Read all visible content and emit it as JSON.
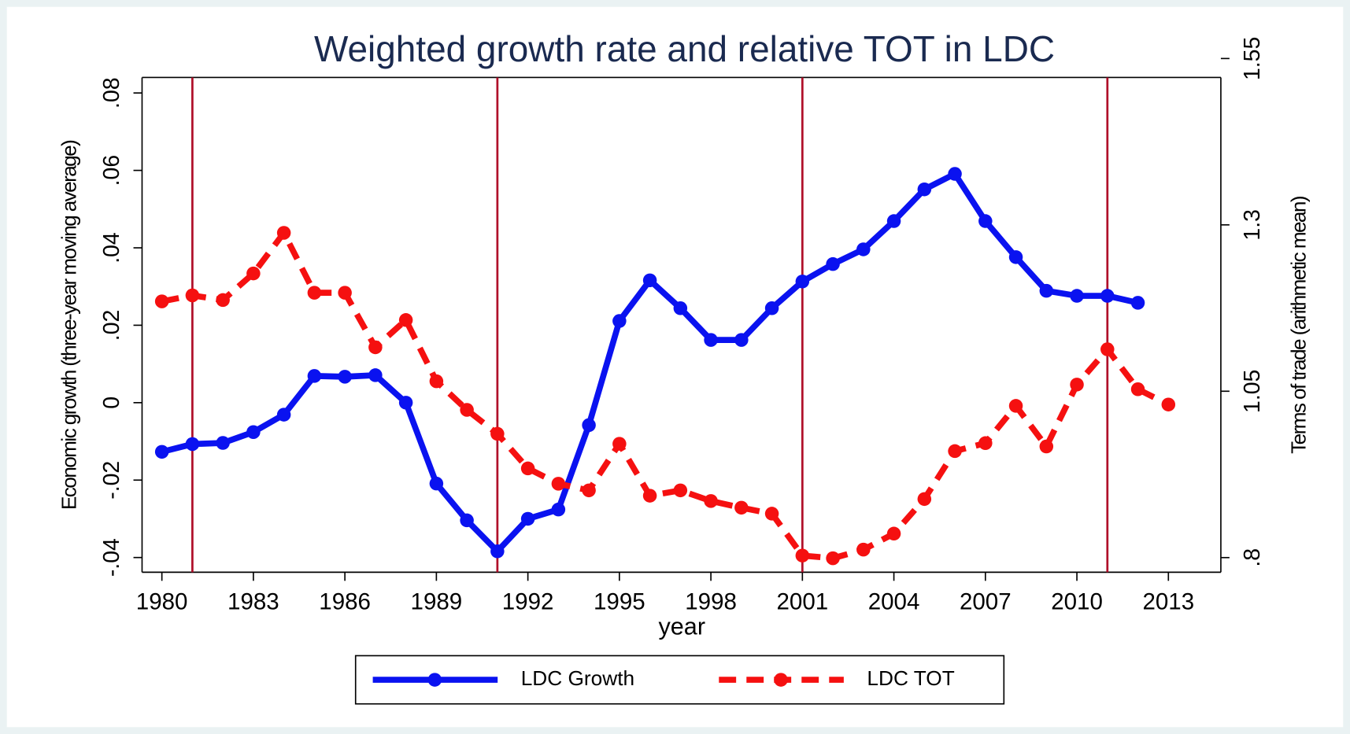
{
  "chart_data": {
    "type": "line",
    "title": "Weighted growth rate and relative TOT in LDC",
    "x_label": "year",
    "y_label": "Economic growth (three-year moving average)",
    "y2_label": "Terms of trade (arithmetic mean)",
    "x": [
      1980,
      1981,
      1982,
      1983,
      1984,
      1985,
      1986,
      1987,
      1988,
      1989,
      1990,
      1991,
      1992,
      1993,
      1994,
      1995,
      1996,
      1997,
      1998,
      1999,
      2000,
      2001,
      2002,
      2003,
      2004,
      2005,
      2006,
      2007,
      2008,
      2009,
      2010,
      2011,
      2012,
      2013
    ],
    "xlim": [
      1979.35,
      2014.72
    ],
    "xticks": [
      1980,
      1983,
      1986,
      1989,
      1992,
      1995,
      1998,
      2001,
      2004,
      2007,
      2010,
      2013
    ],
    "ylim": [
      -0.0438,
      0.0889
    ],
    "yticks": [
      {
        "value": -0.04,
        "label": "-.04"
      },
      {
        "value": -0.02,
        "label": "-.02"
      },
      0,
      {
        "value": 0.02,
        "label": ".02"
      },
      {
        "value": 0.04,
        "label": ".04"
      },
      {
        "value": 0.06,
        "label": ".06"
      },
      {
        "value": 0.08,
        "label": ".08"
      }
    ],
    "y2lim": [
      0.778,
      1.55
    ],
    "y2ticks": [
      {
        "value": 0.8,
        "label": ".8"
      },
      1.05,
      1.3,
      1.55
    ],
    "vlines": [
      1981,
      1991,
      2001,
      2011
    ],
    "vline_color": "#b0102a",
    "series": [
      {
        "name": "LDC Growth",
        "color": "#0a12f0",
        "dash": false,
        "values": [
          -0.0127,
          -0.0107,
          -0.0104,
          -0.0076,
          -0.0031,
          0.0069,
          0.0067,
          0.0071,
          0,
          -0.0209,
          -0.0304,
          -0.0384,
          -0.03,
          -0.0276,
          -0.0058,
          0.0211,
          0.0316,
          0.0244,
          0.0162,
          0.0162,
          0.0244,
          0.0313,
          0.0358,
          0.0396,
          0.0469,
          0.0551,
          0.0591,
          0.0469,
          0.0376,
          0.0289,
          0.0276,
          0.0276,
          0.0258,
          null
        ]
      },
      {
        "name": "LDC TOT",
        "color": "#f51010",
        "dash": true,
        "axis": "y2",
        "values": [
          1.185,
          1.194,
          1.187,
          1.227,
          1.288,
          1.198,
          1.198,
          1.116,
          1.157,
          1.065,
          1.022,
          0.986,
          0.934,
          0.911,
          0.901,
          0.971,
          0.893,
          0.901,
          0.885,
          0.875,
          0.866,
          0.803,
          0.799,
          0.812,
          0.836,
          0.888,
          0.96,
          0.972,
          1.028,
          0.967,
          1.06,
          1.113,
          1.053,
          1.03
        ]
      }
    ]
  }
}
